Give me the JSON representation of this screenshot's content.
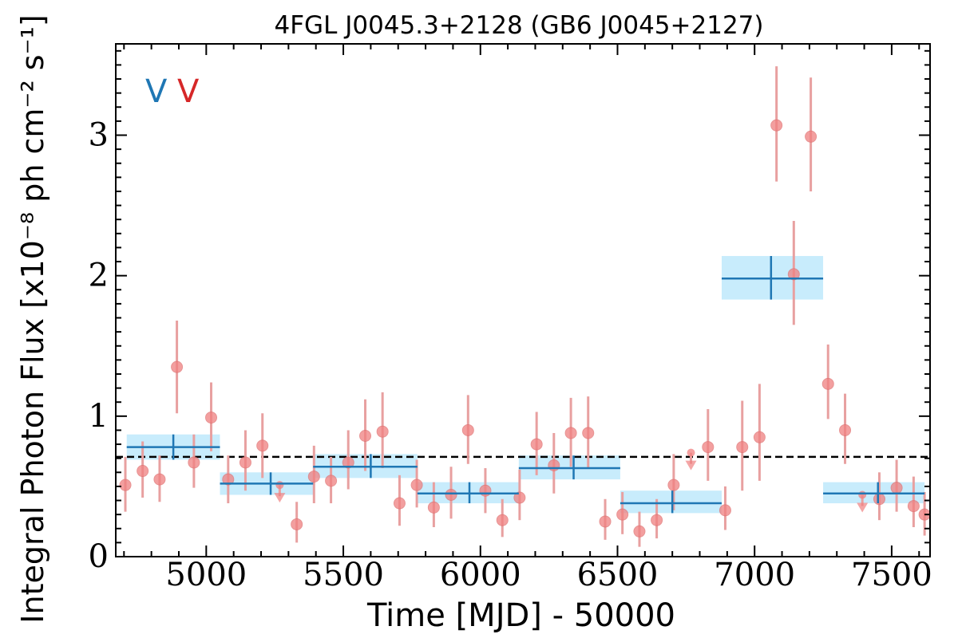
{
  "chart_data": {
    "type": "scatter",
    "title": "4FGL J0045.3+2128 (GB6 J0045+2127)",
    "xlabel": "Time [MJD] - 50000",
    "ylabel": "Integral Photon Flux [x10⁻⁸ ph cm⁻² s⁻¹]",
    "xlim": [
      4670,
      7640
    ],
    "ylim": [
      0,
      3.65
    ],
    "xticks": [
      5000,
      5500,
      6000,
      6500,
      7000,
      7500
    ],
    "yticks": [
      0,
      1,
      2,
      3
    ],
    "mean_flux": 0.71,
    "markers": [
      {
        "text": "V",
        "color": "#1f77b4"
      },
      {
        "text": "V",
        "color": "#d62728"
      }
    ],
    "colors": {
      "points": "#f08080",
      "points_err": "#e8a0a0",
      "bins": "#1f77b4",
      "bins_fill": "#c8ecfc",
      "mean_line": "#000000"
    },
    "series": [
      {
        "kind": "short_bins",
        "points": [
          {
            "x": 4705,
            "y": 0.51,
            "lo": 0.32,
            "hi": 0.71
          },
          {
            "x": 4768,
            "y": 0.61,
            "lo": 0.42,
            "hi": 0.82
          },
          {
            "x": 4830,
            "y": 0.55,
            "lo": 0.39,
            "hi": 0.72
          },
          {
            "x": 4893,
            "y": 1.35,
            "lo": 1.02,
            "hi": 1.68
          },
          {
            "x": 4955,
            "y": 0.67,
            "lo": 0.49,
            "hi": 0.87
          },
          {
            "x": 5018,
            "y": 0.99,
            "lo": 0.75,
            "hi": 1.24
          },
          {
            "x": 5080,
            "y": 0.55,
            "lo": 0.38,
            "hi": 0.72
          },
          {
            "x": 5143,
            "y": 0.67,
            "lo": 0.47,
            "hi": 0.9
          },
          {
            "x": 5205,
            "y": 0.79,
            "lo": 0.56,
            "hi": 1.02
          },
          {
            "x": 5268,
            "y": 0.51,
            "ul": true
          },
          {
            "x": 5330,
            "y": 0.23,
            "lo": 0.1,
            "hi": 0.39
          },
          {
            "x": 5393,
            "y": 0.57,
            "lo": 0.38,
            "hi": 0.79
          },
          {
            "x": 5455,
            "y": 0.54,
            "lo": 0.38,
            "hi": 0.71
          },
          {
            "x": 5518,
            "y": 0.67,
            "lo": 0.48,
            "hi": 0.9
          },
          {
            "x": 5580,
            "y": 0.86,
            "lo": 0.61,
            "hi": 1.12
          },
          {
            "x": 5643,
            "y": 0.89,
            "lo": 0.63,
            "hi": 1.17
          },
          {
            "x": 5705,
            "y": 0.38,
            "lo": 0.22,
            "hi": 0.58
          },
          {
            "x": 5768,
            "y": 0.51,
            "lo": 0.35,
            "hi": 0.69
          },
          {
            "x": 5830,
            "y": 0.35,
            "lo": 0.21,
            "hi": 0.53
          },
          {
            "x": 5893,
            "y": 0.44,
            "lo": 0.27,
            "hi": 0.64
          },
          {
            "x": 5955,
            "y": 0.9,
            "lo": 0.66,
            "hi": 1.15
          },
          {
            "x": 6018,
            "y": 0.47,
            "lo": 0.31,
            "hi": 0.63
          },
          {
            "x": 6080,
            "y": 0.26,
            "lo": 0.14,
            "hi": 0.41
          },
          {
            "x": 6143,
            "y": 0.42,
            "lo": 0.26,
            "hi": 0.62
          },
          {
            "x": 6205,
            "y": 0.8,
            "lo": 0.58,
            "hi": 1.03
          },
          {
            "x": 6268,
            "y": 0.65,
            "lo": 0.45,
            "hi": 0.88
          },
          {
            "x": 6330,
            "y": 0.88,
            "lo": 0.64,
            "hi": 1.13
          },
          {
            "x": 6393,
            "y": 0.88,
            "lo": 0.63,
            "hi": 1.14
          },
          {
            "x": 6455,
            "y": 0.25,
            "lo": 0.12,
            "hi": 0.41
          },
          {
            "x": 6518,
            "y": 0.3,
            "lo": 0.16,
            "hi": 0.46
          },
          {
            "x": 6580,
            "y": 0.18,
            "lo": 0.07,
            "hi": 0.32
          },
          {
            "x": 6643,
            "y": 0.26,
            "lo": 0.13,
            "hi": 0.41
          },
          {
            "x": 6705,
            "y": 0.51,
            "lo": 0.33,
            "hi": 0.73
          },
          {
            "x": 6768,
            "y": 0.74,
            "ul": true
          },
          {
            "x": 6830,
            "y": 0.78,
            "lo": 0.54,
            "hi": 1.05
          },
          {
            "x": 6893,
            "y": 0.33,
            "lo": 0.19,
            "hi": 0.5
          },
          {
            "x": 6955,
            "y": 0.78,
            "lo": 0.47,
            "hi": 1.11
          },
          {
            "x": 7018,
            "y": 0.85,
            "lo": 0.54,
            "hi": 1.23
          },
          {
            "x": 7080,
            "y": 3.07,
            "lo": 2.67,
            "hi": 3.49
          },
          {
            "x": 7143,
            "y": 2.01,
            "lo": 1.65,
            "hi": 2.39
          },
          {
            "x": 7205,
            "y": 2.99,
            "lo": 2.6,
            "hi": 3.41
          },
          {
            "x": 7268,
            "y": 1.23,
            "lo": 0.98,
            "hi": 1.51
          },
          {
            "x": 7330,
            "y": 0.9,
            "lo": 0.66,
            "hi": 1.16
          },
          {
            "x": 7393,
            "y": 0.44,
            "ul": true
          },
          {
            "x": 7455,
            "y": 0.41,
            "lo": 0.26,
            "hi": 0.6
          },
          {
            "x": 7518,
            "y": 0.49,
            "lo": 0.32,
            "hi": 0.69
          },
          {
            "x": 7580,
            "y": 0.36,
            "lo": 0.21,
            "hi": 0.57
          },
          {
            "x": 7620,
            "y": 0.3,
            "lo": 0.15,
            "hi": 0.46
          }
        ]
      },
      {
        "kind": "long_bins",
        "bins": [
          {
            "x0": 4710,
            "x1": 5050,
            "xc": 4880,
            "y": 0.78,
            "lo": 0.69,
            "hi": 0.87
          },
          {
            "x0": 5050,
            "x1": 5390,
            "xc": 5235,
            "y": 0.52,
            "lo": 0.44,
            "hi": 0.6
          },
          {
            "x0": 5390,
            "x1": 5770,
            "xc": 5600,
            "y": 0.64,
            "lo": 0.56,
            "hi": 0.73
          },
          {
            "x0": 5770,
            "x1": 6140,
            "xc": 5960,
            "y": 0.45,
            "lo": 0.38,
            "hi": 0.53
          },
          {
            "x0": 6140,
            "x1": 6510,
            "xc": 6340,
            "y": 0.63,
            "lo": 0.55,
            "hi": 0.72
          },
          {
            "x0": 6510,
            "x1": 6880,
            "xc": 6700,
            "y": 0.38,
            "lo": 0.31,
            "hi": 0.47
          },
          {
            "x0": 6880,
            "x1": 7250,
            "xc": 7060,
            "y": 1.98,
            "lo": 1.83,
            "hi": 2.14
          },
          {
            "x0": 7250,
            "x1": 7620,
            "xc": 7450,
            "y": 0.45,
            "lo": 0.38,
            "hi": 0.53
          }
        ]
      }
    ]
  }
}
